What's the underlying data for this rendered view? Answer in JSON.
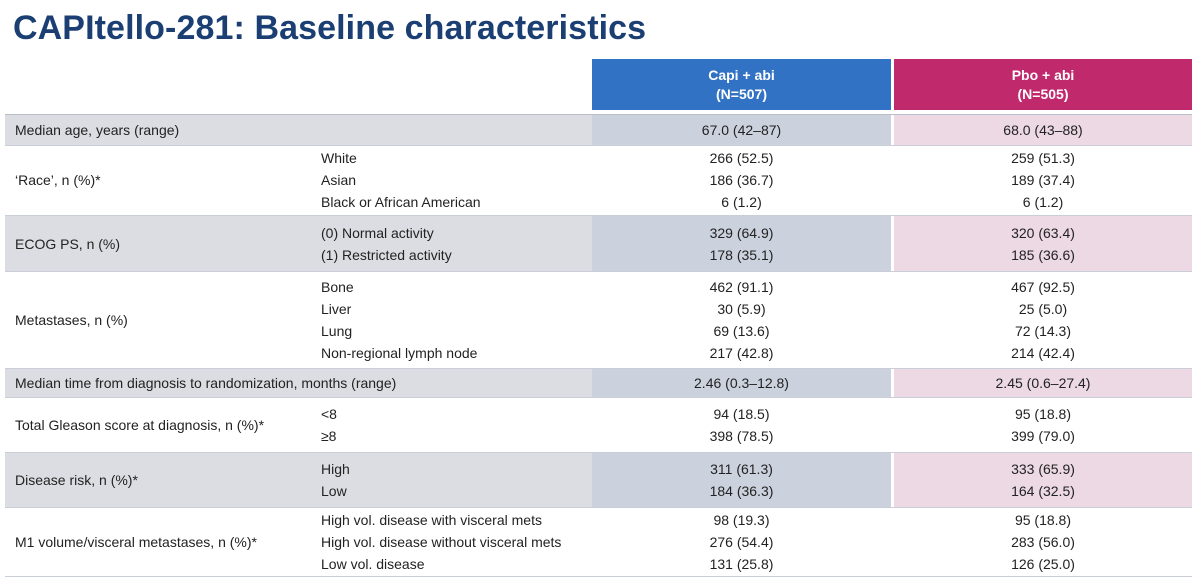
{
  "title": "CAPItello-281: Baseline characteristics",
  "columns": {
    "capi": {
      "name": "Capi + abi",
      "n": "(N=507)"
    },
    "pbo": {
      "name": "Pbo + abi",
      "n": "(N=505)"
    }
  },
  "rows": [
    {
      "label": "Median age, years (range)",
      "subs": [],
      "capi": [
        "67.0 (42–87)"
      ],
      "pbo": [
        "68.0 (43–88)"
      ]
    },
    {
      "label": "‘Race’, n (%)*",
      "subs": [
        "White",
        "Asian",
        "Black or African American"
      ],
      "capi": [
        "266 (52.5)",
        "186 (36.7)",
        "6 (1.2)"
      ],
      "pbo": [
        "259 (51.3)",
        "189 (37.4)",
        "6 (1.2)"
      ]
    },
    {
      "label": "ECOG PS, n (%)",
      "subs": [
        "(0) Normal activity",
        "(1) Restricted activity"
      ],
      "capi": [
        "329 (64.9)",
        "178 (35.1)"
      ],
      "pbo": [
        "320 (63.4)",
        "185 (36.6)"
      ]
    },
    {
      "label": "Metastases, n (%)",
      "subs": [
        "Bone",
        "Liver",
        "Lung",
        "Non-regional lymph node"
      ],
      "capi": [
        "462 (91.1)",
        "30 (5.9)",
        "69 (13.6)",
        "217 (42.8)"
      ],
      "pbo": [
        "467 (92.5)",
        "25 (5.0)",
        "72 (14.3)",
        "214 (42.4)"
      ]
    },
    {
      "label": "Median time from diagnosis to randomization, months (range)",
      "subs": [],
      "capi": [
        "2.46 (0.3–12.8)"
      ],
      "pbo": [
        "2.45 (0.6–27.4)"
      ]
    },
    {
      "label": "Total Gleason score at diagnosis, n (%)*",
      "subs": [
        "<8",
        "≥8"
      ],
      "capi": [
        "94 (18.5)",
        "398 (78.5)"
      ],
      "pbo": [
        "95 (18.8)",
        "399 (79.0)"
      ]
    },
    {
      "label": "Disease risk, n (%)*",
      "subs": [
        "High",
        "Low"
      ],
      "capi": [
        "311 (61.3)",
        "184 (36.3)"
      ],
      "pbo": [
        "333 (65.9)",
        "164 (32.5)"
      ]
    },
    {
      "label": "M1 volume/visceral metastases, n (%)*",
      "subs": [
        "High vol. disease with visceral mets",
        "High vol. disease without visceral mets",
        "Low vol. disease"
      ],
      "capi": [
        "98 (19.3)",
        "276 (54.4)",
        "131 (25.8)"
      ],
      "pbo": [
        "95 (18.8)",
        "283 (56.0)",
        "126 (25.0)"
      ]
    }
  ],
  "colors": {
    "title": "#1b3f73",
    "capi_header": "#3272c4",
    "pbo_header": "#c1296d",
    "shade_label": "#dcdde3",
    "shade_capi": "#ccd2dd",
    "shade_pbo": "#ecd9e3"
  }
}
